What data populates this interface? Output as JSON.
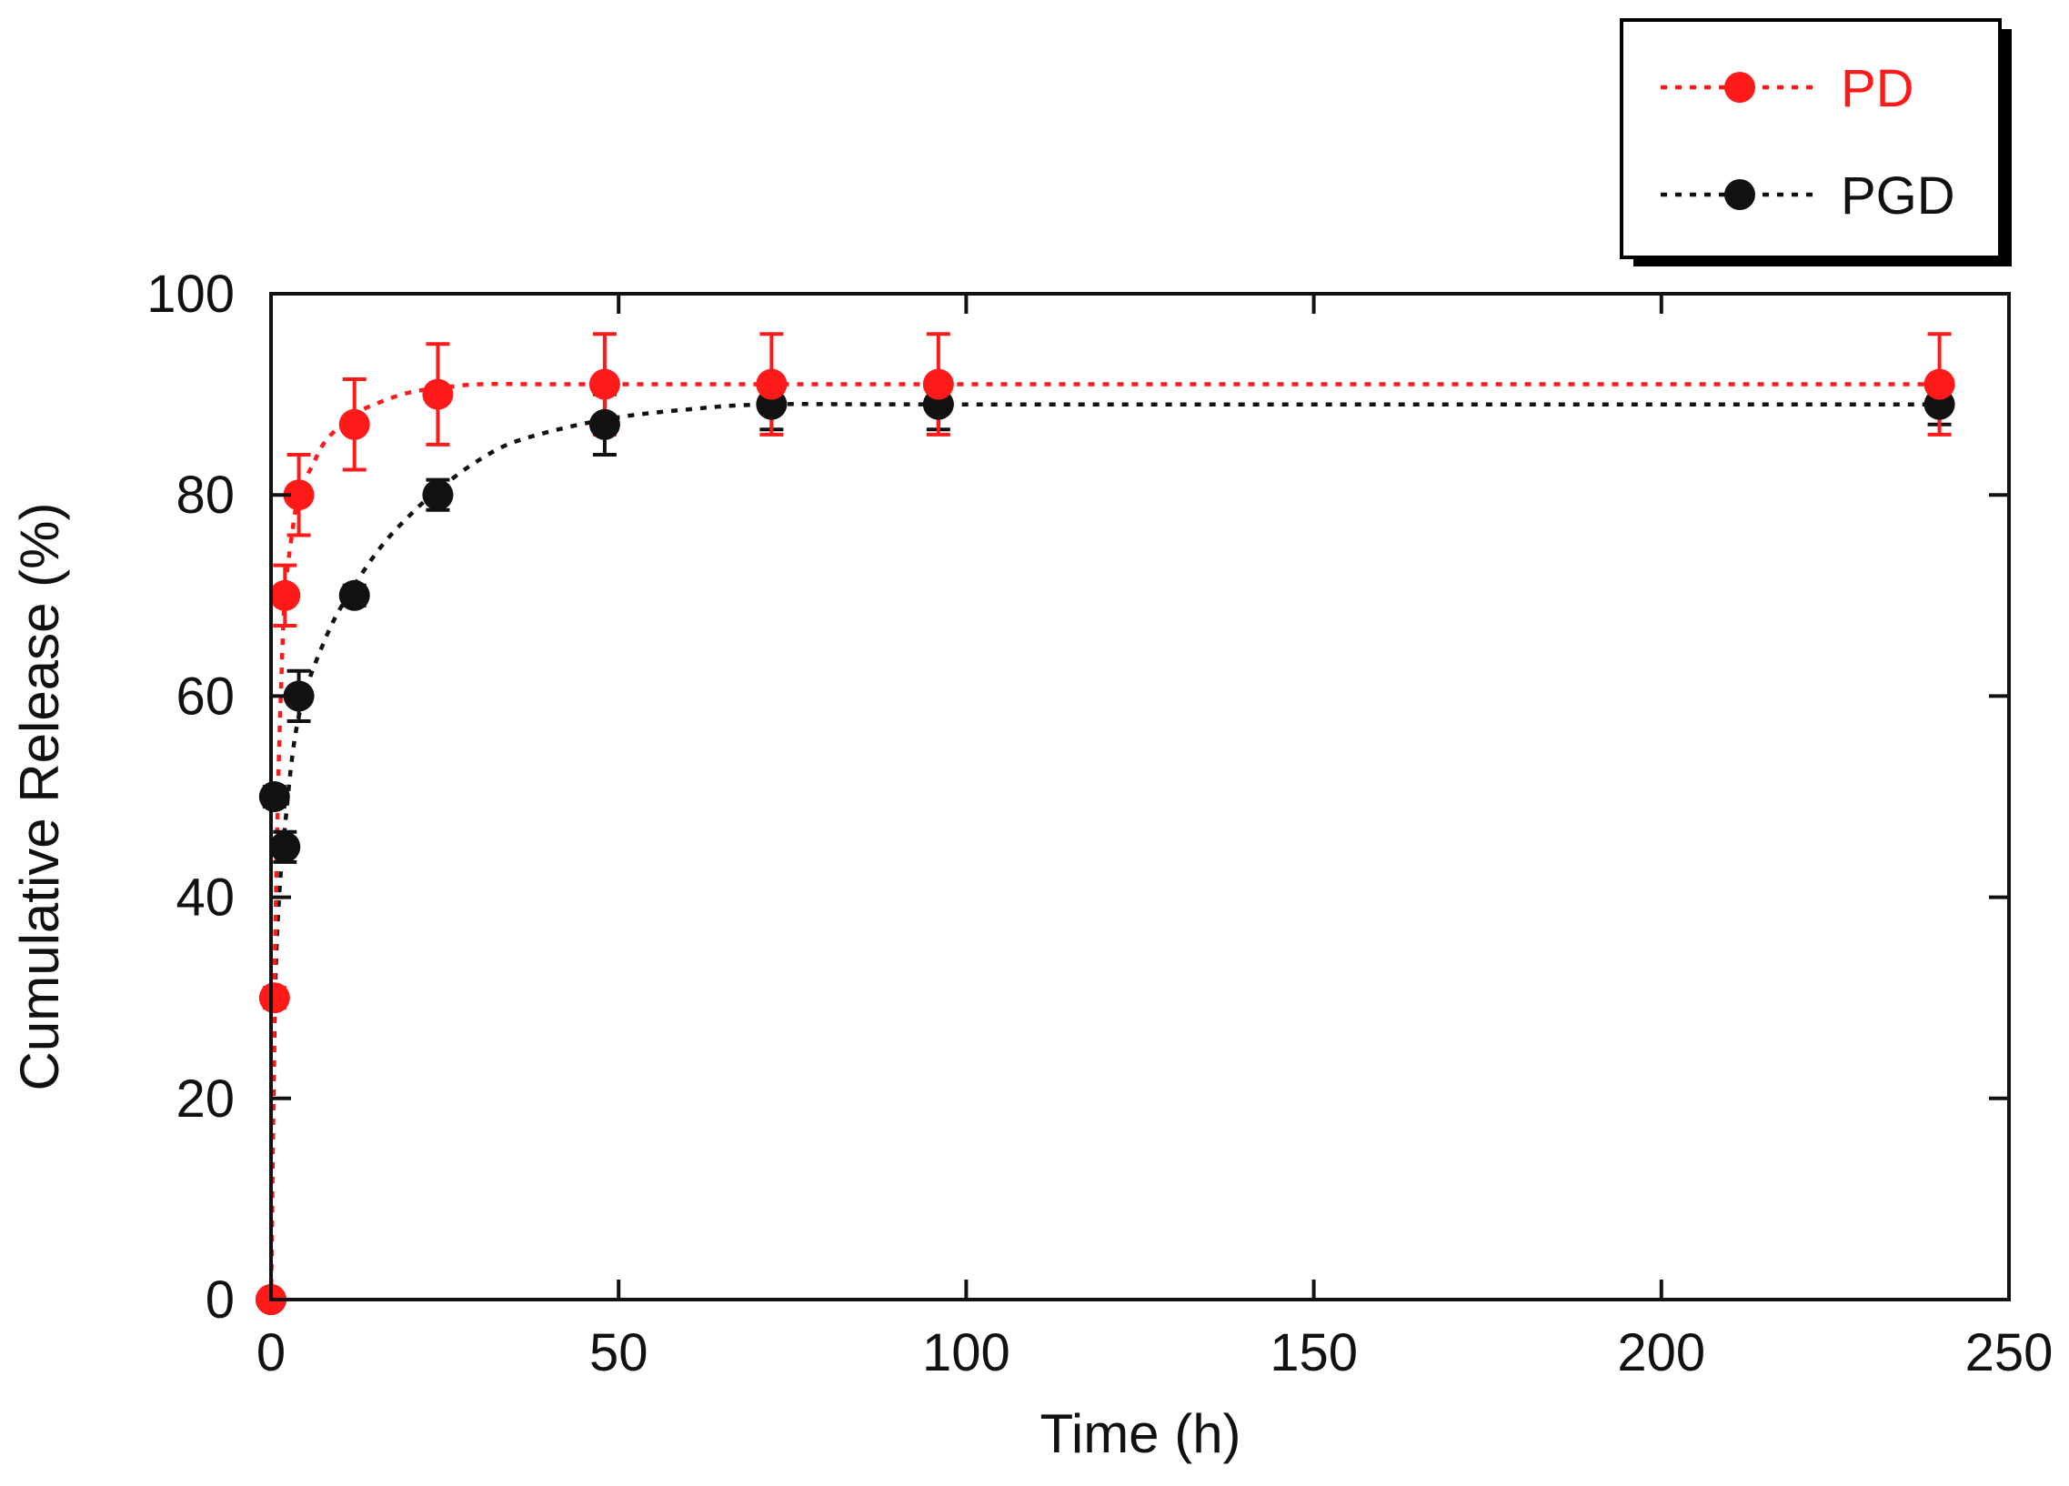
{
  "chart_data": {
    "type": "line",
    "title": "",
    "xlabel": "Time (h)",
    "ylabel": "Cumulative Release (%)",
    "xlim": [
      0,
      250
    ],
    "ylim": [
      0,
      100
    ],
    "xticks": [
      0,
      50,
      100,
      150,
      200,
      250
    ],
    "yticks": [
      0,
      20,
      40,
      60,
      80,
      100
    ],
    "xtick_labels": [
      "0",
      "50",
      "100",
      "150",
      "200",
      "250"
    ],
    "ytick_labels": [
      "0",
      "20",
      "40",
      "60",
      "80",
      "100"
    ],
    "grid": false,
    "legend_position": "top-right, outside plot area",
    "series": [
      {
        "name": "PD",
        "color": "#ff1a1a",
        "marker": "circle",
        "line_style": "dotted",
        "x": [
          0,
          0.5,
          2,
          4,
          12,
          24,
          48,
          72,
          96,
          240
        ],
        "y": [
          0,
          30,
          70,
          80,
          87,
          90,
          91,
          91,
          91,
          91
        ],
        "error": [
          0,
          1,
          3,
          4,
          4.5,
          5,
          5,
          5,
          5,
          5
        ],
        "fit_x": [
          0,
          0.5,
          1,
          1.5,
          2,
          3,
          4,
          6,
          8,
          12,
          16,
          20,
          24,
          30,
          40,
          60,
          100,
          240
        ],
        "fit_y": [
          0,
          31,
          50,
          62,
          70,
          76,
          80,
          83,
          85.5,
          88,
          89.3,
          90.2,
          90.6,
          91,
          91,
          91,
          91,
          91
        ]
      },
      {
        "name": "PGD",
        "color": "#111111",
        "marker": "circle",
        "line_style": "dotted",
        "x": [
          0,
          0.5,
          2,
          4,
          12,
          24,
          48,
          72,
          96,
          240
        ],
        "y": [
          0,
          50,
          45,
          60,
          70,
          80,
          87,
          89,
          89,
          89
        ],
        "error": [
          0,
          1,
          1.5,
          2.5,
          1,
          1.5,
          3,
          2.5,
          2.5,
          2
        ],
        "fit_x": [
          0,
          0.5,
          1,
          2,
          4,
          8,
          12,
          16,
          20,
          24,
          30,
          36,
          48,
          60,
          72,
          100,
          240
        ],
        "fit_y": [
          0,
          27,
          38,
          47,
          58,
          66,
          71,
          75,
          78,
          80.5,
          83.5,
          85.5,
          87.5,
          88.5,
          89,
          89,
          89
        ]
      }
    ]
  }
}
